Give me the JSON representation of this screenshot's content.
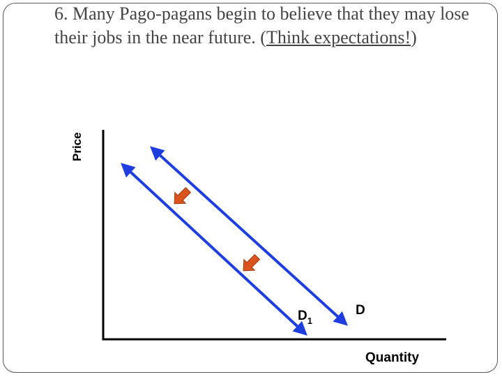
{
  "slide": {
    "title_main": "6. Many Pago-pagans begin to believe that they may lose their jobs in the near future. (",
    "title_link": "Think expectations!",
    "title_end": ")"
  },
  "diagram": {
    "y_axis_label": "Price",
    "x_axis_label": "Quantity",
    "curves": [
      {
        "label_main": "D",
        "label_sub": "",
        "color": "#1f3ee0"
      },
      {
        "label_main": "D",
        "label_sub": "1",
        "color": "#1f3ee0"
      }
    ],
    "shift_arrow_color": "#d9541e",
    "shift_arrow_outline": "#9a3a10",
    "axis_color": "#000000"
  }
}
